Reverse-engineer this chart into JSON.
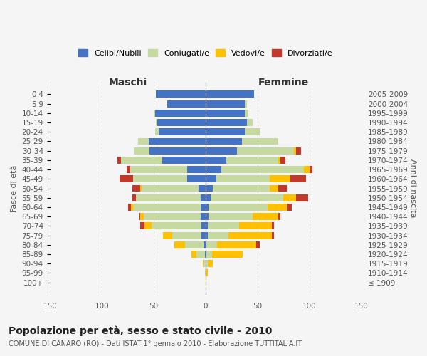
{
  "age_groups": [
    "100+",
    "95-99",
    "90-94",
    "85-89",
    "80-84",
    "75-79",
    "70-74",
    "65-69",
    "60-64",
    "55-59",
    "50-54",
    "45-49",
    "40-44",
    "35-39",
    "30-34",
    "25-29",
    "20-24",
    "15-19",
    "10-14",
    "5-9",
    "0-4"
  ],
  "birth_years": [
    "≤ 1909",
    "1910-1914",
    "1915-1919",
    "1920-1924",
    "1925-1929",
    "1930-1934",
    "1935-1939",
    "1940-1944",
    "1945-1949",
    "1950-1954",
    "1955-1959",
    "1960-1964",
    "1965-1969",
    "1970-1974",
    "1975-1979",
    "1980-1984",
    "1985-1989",
    "1990-1994",
    "1995-1999",
    "2000-2004",
    "2005-2009"
  ],
  "male": {
    "celibi": [
      0,
      0,
      0,
      1,
      2,
      4,
      4,
      5,
      5,
      5,
      7,
      18,
      18,
      42,
      54,
      55,
      45,
      47,
      49,
      37,
      48
    ],
    "coniugati": [
      0,
      1,
      2,
      8,
      18,
      28,
      48,
      55,
      65,
      62,
      55,
      52,
      55,
      40,
      15,
      10,
      4,
      1,
      1,
      0,
      0
    ],
    "vedovi": [
      0,
      0,
      1,
      5,
      10,
      9,
      7,
      3,
      2,
      0,
      1,
      0,
      0,
      0,
      0,
      0,
      0,
      0,
      0,
      0,
      0
    ],
    "divorziati": [
      0,
      0,
      0,
      0,
      0,
      0,
      4,
      1,
      3,
      4,
      8,
      13,
      3,
      3,
      0,
      0,
      0,
      0,
      0,
      0,
      0
    ]
  },
  "female": {
    "nubili": [
      0,
      0,
      1,
      1,
      1,
      2,
      2,
      3,
      3,
      5,
      7,
      10,
      15,
      20,
      30,
      35,
      38,
      40,
      38,
      38,
      47
    ],
    "coniugate": [
      0,
      0,
      1,
      5,
      10,
      20,
      30,
      42,
      57,
      70,
      55,
      52,
      80,
      50,
      55,
      35,
      15,
      5,
      3,
      2,
      0
    ],
    "vedove": [
      1,
      2,
      5,
      30,
      38,
      42,
      32,
      25,
      18,
      12,
      8,
      20,
      5,
      2,
      2,
      0,
      0,
      0,
      0,
      0,
      0
    ],
    "divorziate": [
      0,
      0,
      0,
      0,
      3,
      2,
      2,
      2,
      5,
      12,
      8,
      15,
      3,
      5,
      5,
      0,
      0,
      0,
      0,
      0,
      0
    ]
  },
  "colors": {
    "celibi_nubili": "#4472c4",
    "coniugati": "#c5d9a0",
    "vedovi": "#ffc000",
    "divorziati": "#c0392b"
  },
  "title": "Popolazione per età, sesso e stato civile - 2010",
  "subtitle": "COMUNE DI CANARO (RO) - Dati ISTAT 1° gennaio 2010 - Elaborazione TUTTITALIA.IT",
  "xlabel_left": "Maschi",
  "xlabel_right": "Femmine",
  "ylabel_left": "Fasce di età",
  "ylabel_right": "Anni di nascita",
  "xlim": 150,
  "background_color": "#f5f5f5",
  "grid_color": "#cccccc",
  "legend_labels": [
    "Celibi/Nubili",
    "Coniugati/e",
    "Vedovi/e",
    "Divorziati/e"
  ]
}
